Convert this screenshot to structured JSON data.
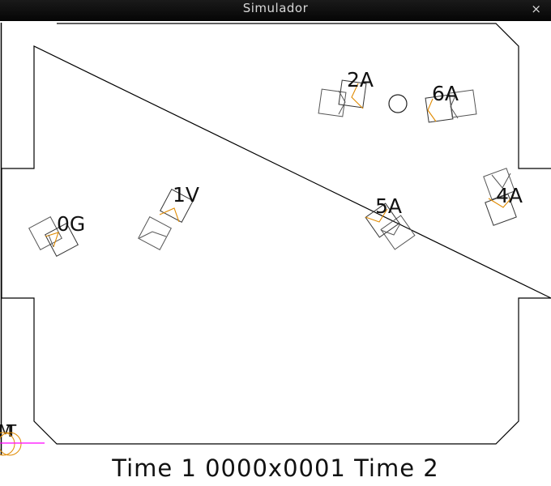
{
  "window": {
    "title": "Simulador",
    "close_glyph": "×"
  },
  "score": {
    "left_label": "Time 1",
    "score": "0000x0001",
    "right_label": "Time 2"
  },
  "field": {
    "ball_count": 1
  },
  "robots": [
    {
      "label": "0G"
    },
    {
      "label": "1V"
    },
    {
      "label": "2A"
    },
    {
      "label": "4A"
    },
    {
      "label": "5A"
    },
    {
      "label": "6A"
    }
  ],
  "corner_labels": [
    "M",
    "T"
  ],
  "colors": {
    "titlebar": "#0d0d0d",
    "field_line": "#000000",
    "robot_marker": "#e08a00",
    "robot_outline": "#333333",
    "corner_indicator": "#ff00ff"
  }
}
